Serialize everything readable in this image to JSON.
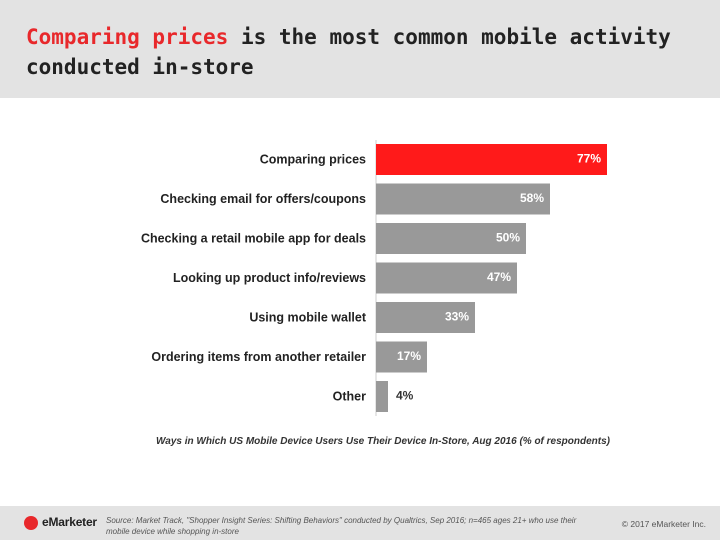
{
  "header": {
    "title_highlight": "Comparing prices",
    "title_rest": " is the most common mobile activity conducted in-store"
  },
  "chart_data": {
    "type": "bar",
    "orientation": "horizontal",
    "title": "Comparing prices is the most common mobile activity conducted in-store",
    "subtitle": "Ways in Which US Mobile Device Users Use Their Device In-Store, Aug 2016 (% of respondents)",
    "categories": [
      "Comparing prices",
      "Checking email for offers/coupons",
      "Checking a retail mobile app for deals",
      "Looking up product info/reviews",
      "Using mobile wallet",
      "Ordering items from another retailer",
      "Other"
    ],
    "values": [
      77,
      58,
      50,
      47,
      33,
      17,
      4
    ],
    "labels": [
      "77%",
      "58%",
      "50%",
      "47%",
      "33%",
      "17%",
      "4%"
    ],
    "highlight_index": 0,
    "colors": {
      "highlight": "#ff1a1a",
      "bar": "#999999",
      "label_light": "#ffffff",
      "label_dark": "#333333"
    },
    "xlim": [
      0,
      100
    ],
    "grid": false,
    "legend": "none"
  },
  "footer": {
    "brand": "eMarketer",
    "source": "Source: Market Track, \"Shopper Insight Series: Shifting Behaviors\" conducted by Qualtrics, Sep 2016; n=465 ages 21+ who use their mobile device while shopping in-store",
    "copyright": "© 2017 eMarketer Inc."
  }
}
